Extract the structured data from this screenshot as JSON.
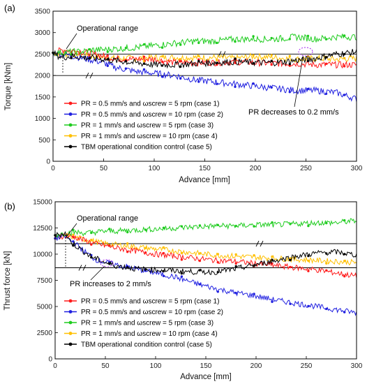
{
  "colors": {
    "case1": "#ff1a1a",
    "case2": "#1f1fe0",
    "case3": "#1ecc1e",
    "case4": "#ffc000",
    "case5": "#000000",
    "annotation_dash": "#a020f0"
  },
  "chart_data": [
    {
      "panel": "(a)",
      "type": "line",
      "xlabel": "Advance [mm]",
      "ylabel": "Torque [kNm]",
      "xlim": [
        0,
        300
      ],
      "ylim": [
        0,
        3500
      ],
      "xticks": [
        0,
        50,
        100,
        150,
        200,
        250,
        300
      ],
      "yticks": [
        0,
        500,
        1000,
        1500,
        2000,
        2500,
        3000,
        3500
      ],
      "operational_range": [
        2000,
        2500
      ],
      "annotations": [
        {
          "text": "Operational range"
        },
        {
          "text": "PR decreases to 0.2 mm/s",
          "x": 255,
          "y": 2600
        }
      ],
      "legend_position": "lower-left",
      "series": [
        {
          "key": "case1",
          "legend": "PR = 0.5 mm/s and ωscrew = 5 rpm (case 1)",
          "x": [
            0,
            10,
            20,
            30,
            40,
            50,
            60,
            80,
            100,
            120,
            140,
            160,
            180,
            200,
            220,
            240,
            260,
            280,
            300
          ],
          "y": [
            2530,
            2600,
            2580,
            2550,
            2500,
            2450,
            2400,
            2380,
            2380,
            2300,
            2300,
            2300,
            2320,
            2300,
            2280,
            2280,
            2250,
            2250,
            2250
          ]
        },
        {
          "key": "case2",
          "legend": "PR = 0.5 mm/s and ωscrew = 10 rpm (case 2)",
          "x": [
            0,
            10,
            20,
            30,
            40,
            50,
            60,
            80,
            100,
            120,
            140,
            160,
            180,
            200,
            220,
            240,
            260,
            280,
            300
          ],
          "y": [
            2530,
            2500,
            2450,
            2400,
            2350,
            2300,
            2200,
            2100,
            2050,
            2000,
            1900,
            1850,
            1800,
            1750,
            1700,
            1650,
            1650,
            1600,
            1450
          ]
        },
        {
          "key": "case3",
          "legend": "PR = 1 mm/s and ωscrew = 5 rpm (case 3)",
          "x": [
            0,
            10,
            20,
            30,
            40,
            50,
            60,
            80,
            100,
            120,
            140,
            160,
            180,
            200,
            220,
            240,
            260,
            280,
            300
          ],
          "y": [
            2530,
            2540,
            2550,
            2560,
            2600,
            2600,
            2620,
            2650,
            2700,
            2750,
            2800,
            2800,
            2850,
            2850,
            2850,
            2900,
            2850,
            2900,
            2900
          ]
        },
        {
          "key": "case4",
          "legend": "PR = 1 mm/s and ωscrew = 10 rpm (case 4)",
          "x": [
            0,
            10,
            20,
            30,
            40,
            50,
            60,
            80,
            100,
            120,
            140,
            160,
            180,
            200,
            220,
            240,
            260,
            280,
            300
          ],
          "y": [
            2530,
            2500,
            2500,
            2480,
            2450,
            2420,
            2400,
            2400,
            2420,
            2420,
            2420,
            2420,
            2400,
            2450,
            2420,
            2380,
            2400,
            2380,
            2400
          ]
        },
        {
          "key": "case5",
          "legend": "TBM operational condition control (case 5)",
          "x": [
            0,
            8,
            20,
            30,
            40,
            50,
            60,
            80,
            100,
            120,
            140,
            160,
            180,
            200,
            220,
            240,
            260,
            280,
            300
          ],
          "y": [
            2530,
            2420,
            2450,
            2420,
            2400,
            2380,
            2350,
            2300,
            2250,
            2250,
            2280,
            2300,
            2320,
            2300,
            2300,
            2350,
            2400,
            2500,
            2550
          ]
        }
      ]
    },
    {
      "panel": "(b)",
      "type": "line",
      "xlabel": "Advance [mm]",
      "ylabel": "Thrust force [kN]",
      "xlim": [
        0,
        300
      ],
      "ylim": [
        0,
        15000
      ],
      "xticks": [
        0,
        50,
        100,
        150,
        200,
        250,
        300
      ],
      "yticks": [
        0,
        2500,
        5000,
        7500,
        10000,
        12500,
        15000
      ],
      "operational_range": [
        8700,
        11000
      ],
      "annotations": [
        {
          "text": "Operational range"
        },
        {
          "text": "PR increases to 2 mm/s",
          "x": 50,
          "y": 8700
        }
      ],
      "legend_position": "lower-left",
      "series": [
        {
          "key": "case1",
          "legend": "PR = 0.5 mm/s and ωscrew = 5 rpm (case 1)",
          "x": [
            0,
            10,
            20,
            30,
            40,
            50,
            60,
            80,
            100,
            120,
            140,
            160,
            180,
            200,
            220,
            240,
            260,
            280,
            300
          ],
          "y": [
            11500,
            11800,
            11600,
            11300,
            11000,
            10800,
            10600,
            10300,
            10000,
            9800,
            9600,
            9400,
            9300,
            9100,
            8900,
            8700,
            8500,
            8200,
            7900
          ]
        },
        {
          "key": "case2",
          "legend": "PR = 0.5 mm/s and ωscrew = 10 rpm (case 2)",
          "x": [
            0,
            10,
            20,
            30,
            40,
            50,
            60,
            80,
            100,
            120,
            140,
            160,
            180,
            200,
            220,
            240,
            260,
            280,
            300
          ],
          "y": [
            11500,
            11700,
            11000,
            10200,
            9500,
            9200,
            9000,
            8600,
            8200,
            7800,
            7200,
            6700,
            6300,
            6000,
            5600,
            5300,
            5000,
            4700,
            4400
          ]
        },
        {
          "key": "case3",
          "legend": "PR = 1 mm/s and ωscrew = 5 rpm (case 3)",
          "x": [
            0,
            10,
            20,
            30,
            40,
            50,
            60,
            80,
            100,
            120,
            140,
            160,
            180,
            200,
            220,
            240,
            260,
            280,
            300
          ],
          "y": [
            11800,
            12000,
            12100,
            12000,
            12100,
            12200,
            12200,
            12300,
            12400,
            12500,
            12600,
            12700,
            12700,
            12800,
            12800,
            12900,
            13000,
            13000,
            13200
          ]
        },
        {
          "key": "case4",
          "legend": "PR = 1 mm/s and ωscrew = 10 rpm (case 4)",
          "x": [
            0,
            10,
            20,
            30,
            40,
            50,
            60,
            80,
            100,
            120,
            140,
            160,
            180,
            200,
            220,
            240,
            260,
            280,
            300
          ],
          "y": [
            11500,
            11800,
            11600,
            11400,
            11200,
            11000,
            10900,
            10700,
            10500,
            10300,
            10100,
            9900,
            9800,
            9700,
            9600,
            9500,
            9400,
            9300,
            9200
          ]
        },
        {
          "key": "case5",
          "legend": "TBM operational condition control (case 5)",
          "x": [
            0,
            10,
            15,
            25,
            35,
            50,
            60,
            80,
            100,
            120,
            140,
            160,
            180,
            200,
            220,
            240,
            260,
            280,
            300
          ],
          "y": [
            11800,
            12000,
            11200,
            10500,
            9800,
            9200,
            8900,
            8600,
            8500,
            8400,
            8300,
            8300,
            8600,
            9000,
            9400,
            9800,
            10100,
            10200,
            9900
          ]
        }
      ]
    }
  ]
}
